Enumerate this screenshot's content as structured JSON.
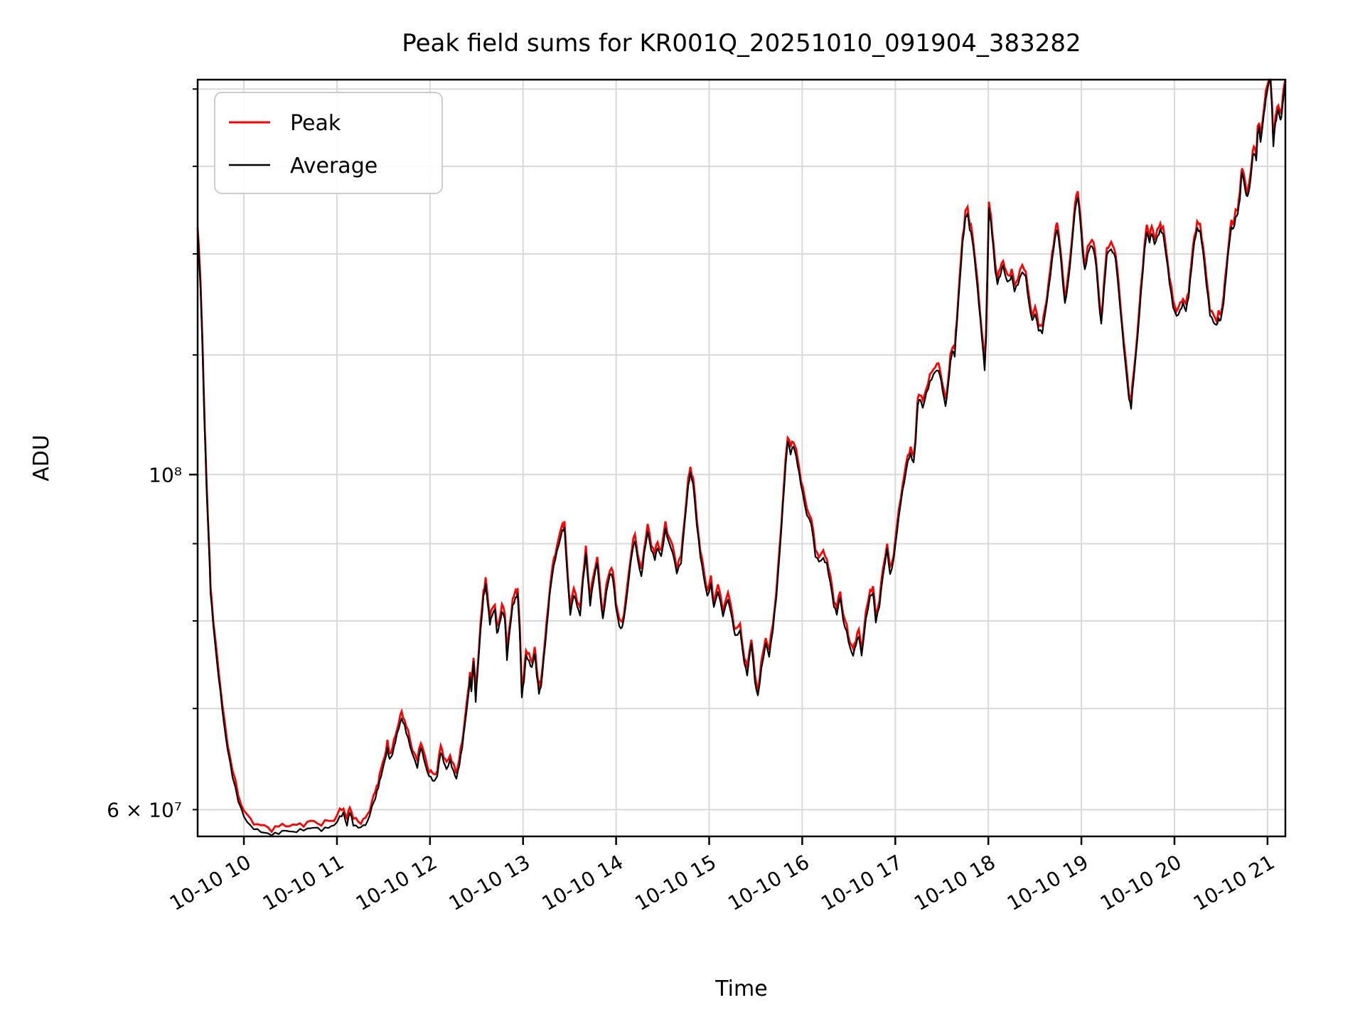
{
  "figure": {
    "background": "#ffffff"
  },
  "chart_data": {
    "type": "line",
    "title": "Peak field sums for KR001Q_20251010_091904_383282",
    "xlabel": "Time",
    "ylabel": "ADU",
    "grid": true,
    "legend": {
      "position": "upper-left",
      "entries": [
        {
          "label": "Peak",
          "color": "#ff0000"
        },
        {
          "label": "Average",
          "color": "#000000"
        }
      ]
    },
    "x_axis": {
      "scale": "time",
      "start_hour": 9.503,
      "end_hour": 21.192,
      "tick_hours": [
        10,
        11,
        12,
        13,
        14,
        15,
        16,
        17,
        18,
        19,
        20,
        21
      ],
      "tick_labels": [
        "10-10 10",
        "10-10 11",
        "10-10 12",
        "10-10 13",
        "10-10 14",
        "10-10 15",
        "10-10 16",
        "10-10 17",
        "10-10 18",
        "10-10 19",
        "10-10 20",
        "10-10 21"
      ]
    },
    "y_axis": {
      "scale": "log",
      "min": 57600000,
      "max": 182600000,
      "major_ticks": [
        {
          "value": 100000000,
          "label": "10⁸"
        }
      ],
      "labeled_minor_tick": {
        "value": 60000000,
        "label": "6 × 10⁷"
      },
      "grid_values": [
        60000000,
        70000000,
        80000000,
        90000000,
        100000000,
        120000000,
        140000000,
        160000000,
        180000000
      ]
    },
    "series_note": "Peak (red) and Average (black) overlap almost exactly; Peak rides marginally above Average",
    "points_unit": "x = hours of 10-10, y = ADU x 1e7",
    "points": [
      [
        9.503,
        14.5
      ],
      [
        9.526,
        13.6
      ],
      [
        9.542,
        12.85
      ],
      [
        9.557,
        11.95
      ],
      [
        9.572,
        11.05
      ],
      [
        9.587,
        10.3
      ],
      [
        9.603,
        9.6
      ],
      [
        9.626,
        8.9
      ],
      [
        9.641,
        8.35
      ],
      [
        9.671,
        7.95
      ],
      [
        9.71,
        7.52
      ],
      [
        9.748,
        7.18
      ],
      [
        9.786,
        6.85
      ],
      [
        9.824,
        6.6
      ],
      [
        9.878,
        6.33
      ],
      [
        9.939,
        6.1
      ],
      [
        10.0,
        5.95
      ],
      [
        10.069,
        5.86
      ],
      [
        10.145,
        5.82
      ],
      [
        10.222,
        5.79
      ],
      [
        10.298,
        5.77
      ],
      [
        10.374,
        5.78
      ],
      [
        10.451,
        5.8
      ],
      [
        10.527,
        5.78
      ],
      [
        10.604,
        5.8
      ],
      [
        10.68,
        5.81
      ],
      [
        10.756,
        5.83
      ],
      [
        10.833,
        5.81
      ],
      [
        10.909,
        5.84
      ],
      [
        10.97,
        5.86
      ],
      [
        11.031,
        5.94
      ],
      [
        11.07,
        5.98
      ],
      [
        11.108,
        5.87
      ],
      [
        11.138,
        6.0
      ],
      [
        11.176,
        5.88
      ],
      [
        11.23,
        5.85
      ],
      [
        11.283,
        5.86
      ],
      [
        11.329,
        5.89
      ],
      [
        11.375,
        6.02
      ],
      [
        11.413,
        6.1
      ],
      [
        11.444,
        6.2
      ],
      [
        11.474,
        6.3
      ],
      [
        11.513,
        6.44
      ],
      [
        11.543,
        6.57
      ],
      [
        11.566,
        6.46
      ],
      [
        11.597,
        6.52
      ],
      [
        11.627,
        6.65
      ],
      [
        11.665,
        6.8
      ],
      [
        11.696,
        6.9
      ],
      [
        11.726,
        6.83
      ],
      [
        11.765,
        6.7
      ],
      [
        11.81,
        6.55
      ],
      [
        11.864,
        6.42
      ],
      [
        11.902,
        6.62
      ],
      [
        11.933,
        6.5
      ],
      [
        11.971,
        6.36
      ],
      [
        12.009,
        6.3
      ],
      [
        12.047,
        6.26
      ],
      [
        12.078,
        6.31
      ],
      [
        12.116,
        6.54
      ],
      [
        12.147,
        6.44
      ],
      [
        12.177,
        6.36
      ],
      [
        12.216,
        6.45
      ],
      [
        12.254,
        6.34
      ],
      [
        12.284,
        6.28
      ],
      [
        12.315,
        6.42
      ],
      [
        12.346,
        6.6
      ],
      [
        12.376,
        6.85
      ],
      [
        12.407,
        7.1
      ],
      [
        12.43,
        7.35
      ],
      [
        12.445,
        7.2
      ],
      [
        12.468,
        7.55
      ],
      [
        12.491,
        7.1
      ],
      [
        12.514,
        7.45
      ],
      [
        12.544,
        7.9
      ],
      [
        12.575,
        8.3
      ],
      [
        12.598,
        8.45
      ],
      [
        12.621,
        8.2
      ],
      [
        12.644,
        7.95
      ],
      [
        12.667,
        8.05
      ],
      [
        12.697,
        8.12
      ],
      [
        12.72,
        7.82
      ],
      [
        12.743,
        7.92
      ],
      [
        12.774,
        8.1
      ],
      [
        12.804,
        8.03
      ],
      [
        12.827,
        7.55
      ],
      [
        12.858,
        7.9
      ],
      [
        12.888,
        8.2
      ],
      [
        12.919,
        8.3
      ],
      [
        12.941,
        8.36
      ],
      [
        12.964,
        7.9
      ],
      [
        12.987,
        7.15
      ],
      [
        13.01,
        7.32
      ],
      [
        13.033,
        7.6
      ],
      [
        13.064,
        7.52
      ],
      [
        13.094,
        7.44
      ],
      [
        13.125,
        7.6
      ],
      [
        13.148,
        7.35
      ],
      [
        13.171,
        7.15
      ],
      [
        13.194,
        7.22
      ],
      [
        13.224,
        7.55
      ],
      [
        13.255,
        7.9
      ],
      [
        13.285,
        8.3
      ],
      [
        13.316,
        8.6
      ],
      [
        13.346,
        8.8
      ],
      [
        13.384,
        9.0
      ],
      [
        13.422,
        9.2
      ],
      [
        13.445,
        9.23
      ],
      [
        13.476,
        8.6
      ],
      [
        13.507,
        8.1
      ],
      [
        13.545,
        8.35
      ],
      [
        13.583,
        8.2
      ],
      [
        13.613,
        8.07
      ],
      [
        13.644,
        8.5
      ],
      [
        13.675,
        8.85
      ],
      [
        13.698,
        8.5
      ],
      [
        13.721,
        8.18
      ],
      [
        13.759,
        8.5
      ],
      [
        13.797,
        8.72
      ],
      [
        13.828,
        8.3
      ],
      [
        13.858,
        8.0
      ],
      [
        13.896,
        8.35
      ],
      [
        13.935,
        8.6
      ],
      [
        13.965,
        8.55
      ],
      [
        13.996,
        8.2
      ],
      [
        14.034,
        7.95
      ],
      [
        14.065,
        7.93
      ],
      [
        14.103,
        8.2
      ],
      [
        14.141,
        8.6
      ],
      [
        14.171,
        8.9
      ],
      [
        14.202,
        9.06
      ],
      [
        14.232,
        8.8
      ],
      [
        14.271,
        8.55
      ],
      [
        14.301,
        8.85
      ],
      [
        14.339,
        9.15
      ],
      [
        14.377,
        8.9
      ],
      [
        14.416,
        8.77
      ],
      [
        14.446,
        8.92
      ],
      [
        14.484,
        8.8
      ],
      [
        14.53,
        9.18
      ],
      [
        14.568,
        9.0
      ],
      [
        14.607,
        8.88
      ],
      [
        14.652,
        8.62
      ],
      [
        14.698,
        8.76
      ],
      [
        14.736,
        9.3
      ],
      [
        14.775,
        9.85
      ],
      [
        14.798,
        10.05
      ],
      [
        14.828,
        9.88
      ],
      [
        14.866,
        9.3
      ],
      [
        14.905,
        8.85
      ],
      [
        14.943,
        8.55
      ],
      [
        14.981,
        8.3
      ],
      [
        15.019,
        8.45
      ],
      [
        15.05,
        8.15
      ],
      [
        15.095,
        8.35
      ],
      [
        15.149,
        8.05
      ],
      [
        15.202,
        8.25
      ],
      [
        15.248,
        8.0
      ],
      [
        15.279,
        7.8
      ],
      [
        15.332,
        7.87
      ],
      [
        15.378,
        7.5
      ],
      [
        15.409,
        7.38
      ],
      [
        15.454,
        7.75
      ],
      [
        15.493,
        7.3
      ],
      [
        15.523,
        7.15
      ],
      [
        15.561,
        7.45
      ],
      [
        15.607,
        7.75
      ],
      [
        15.645,
        7.6
      ],
      [
        15.684,
        7.9
      ],
      [
        15.722,
        8.3
      ],
      [
        15.76,
        8.9
      ],
      [
        15.791,
        9.5
      ],
      [
        15.821,
        10.1
      ],
      [
        15.844,
        10.5
      ],
      [
        15.875,
        10.3
      ],
      [
        15.905,
        10.42
      ],
      [
        15.936,
        10.25
      ],
      [
        15.966,
        10.0
      ],
      [
        16.005,
        9.7
      ],
      [
        16.05,
        9.4
      ],
      [
        16.096,
        9.3
      ],
      [
        16.142,
        8.85
      ],
      [
        16.18,
        8.78
      ],
      [
        16.226,
        8.82
      ],
      [
        16.264,
        8.75
      ],
      [
        16.302,
        8.5
      ],
      [
        16.341,
        8.2
      ],
      [
        16.371,
        8.1
      ],
      [
        16.409,
        8.3
      ],
      [
        16.44,
        8.0
      ],
      [
        16.478,
        7.85
      ],
      [
        16.516,
        7.65
      ],
      [
        16.547,
        7.57
      ],
      [
        16.577,
        7.7
      ],
      [
        16.608,
        7.8
      ],
      [
        16.638,
        7.57
      ],
      [
        16.684,
        8.0
      ],
      [
        16.73,
        8.3
      ],
      [
        16.761,
        8.35
      ],
      [
        16.791,
        8.0
      ],
      [
        16.829,
        8.2
      ],
      [
        16.868,
        8.6
      ],
      [
        16.913,
        8.95
      ],
      [
        16.944,
        8.6
      ],
      [
        16.982,
        8.8
      ],
      [
        17.02,
        9.2
      ],
      [
        17.059,
        9.6
      ],
      [
        17.097,
        9.9
      ],
      [
        17.135,
        10.2
      ],
      [
        17.165,
        10.3
      ],
      [
        17.196,
        10.15
      ],
      [
        17.219,
        10.5
      ],
      [
        17.242,
        11.1
      ],
      [
        17.265,
        11.2
      ],
      [
        17.295,
        11.05
      ],
      [
        17.334,
        11.3
      ],
      [
        17.372,
        11.5
      ],
      [
        17.41,
        11.65
      ],
      [
        17.448,
        11.75
      ],
      [
        17.479,
        11.68
      ],
      [
        17.509,
        11.4
      ],
      [
        17.54,
        11.12
      ],
      [
        17.57,
        11.5
      ],
      [
        17.593,
        11.9
      ],
      [
        17.616,
        12.1
      ],
      [
        17.639,
        12.0
      ],
      [
        17.662,
        12.6
      ],
      [
        17.693,
        13.4
      ],
      [
        17.723,
        14.2
      ],
      [
        17.754,
        14.75
      ],
      [
        17.777,
        14.85
      ],
      [
        17.8,
        14.5
      ],
      [
        17.823,
        14.35
      ],
      [
        17.853,
        13.85
      ],
      [
        17.884,
        13.25
      ],
      [
        17.914,
        12.65
      ],
      [
        17.945,
        12.05
      ],
      [
        17.96,
        11.75
      ],
      [
        17.975,
        12.3
      ],
      [
        17.991,
        13.6
      ],
      [
        18.006,
        15.05
      ],
      [
        18.029,
        14.7
      ],
      [
        18.052,
        14.2
      ],
      [
        18.075,
        13.65
      ],
      [
        18.098,
        13.4
      ],
      [
        18.128,
        13.55
      ],
      [
        18.159,
        13.75
      ],
      [
        18.19,
        13.45
      ],
      [
        18.22,
        13.38
      ],
      [
        18.251,
        13.5
      ],
      [
        18.281,
        13.2
      ],
      [
        18.319,
        13.35
      ],
      [
        18.365,
        13.6
      ],
      [
        18.403,
        13.5
      ],
      [
        18.434,
        13.0
      ],
      [
        18.472,
        12.65
      ],
      [
        18.503,
        12.8
      ],
      [
        18.541,
        12.5
      ],
      [
        18.579,
        12.45
      ],
      [
        18.609,
        12.8
      ],
      [
        18.648,
        13.3
      ],
      [
        18.686,
        13.9
      ],
      [
        18.716,
        14.35
      ],
      [
        18.739,
        14.55
      ],
      [
        18.77,
        14.1
      ],
      [
        18.8,
        13.4
      ],
      [
        18.823,
        12.95
      ],
      [
        18.854,
        13.3
      ],
      [
        18.892,
        14.0
      ],
      [
        18.93,
        14.9
      ],
      [
        18.961,
        15.25
      ],
      [
        18.984,
        14.8
      ],
      [
        19.014,
        14.0
      ],
      [
        19.037,
        13.65
      ],
      [
        19.068,
        14.0
      ],
      [
        19.098,
        14.2
      ],
      [
        19.129,
        14.15
      ],
      [
        19.159,
        13.8
      ],
      [
        19.19,
        13.0
      ],
      [
        19.213,
        12.6
      ],
      [
        19.244,
        13.3
      ],
      [
        19.274,
        14.0
      ],
      [
        19.305,
        14.1
      ],
      [
        19.335,
        14.05
      ],
      [
        19.366,
        13.9
      ],
      [
        19.396,
        13.3
      ],
      [
        19.435,
        12.5
      ],
      [
        19.473,
        11.8
      ],
      [
        19.511,
        11.2
      ],
      [
        19.534,
        11.05
      ],
      [
        19.564,
        11.6
      ],
      [
        19.603,
        12.3
      ],
      [
        19.641,
        13.2
      ],
      [
        19.679,
        14.1
      ],
      [
        19.702,
        14.5
      ],
      [
        19.733,
        14.3
      ],
      [
        19.756,
        14.5
      ],
      [
        19.786,
        14.25
      ],
      [
        19.817,
        14.4
      ],
      [
        19.848,
        14.55
      ],
      [
        19.878,
        14.45
      ],
      [
        19.909,
        14.0
      ],
      [
        19.947,
        13.4
      ],
      [
        19.985,
        12.9
      ],
      [
        20.023,
        12.7
      ],
      [
        20.062,
        12.8
      ],
      [
        20.092,
        12.95
      ],
      [
        20.123,
        12.8
      ],
      [
        20.153,
        13.1
      ],
      [
        20.184,
        13.7
      ],
      [
        20.214,
        14.25
      ],
      [
        20.245,
        14.55
      ],
      [
        20.276,
        14.5
      ],
      [
        20.306,
        14.1
      ],
      [
        20.344,
        13.4
      ],
      [
        20.382,
        12.8
      ],
      [
        20.421,
        12.65
      ],
      [
        20.451,
        12.58
      ],
      [
        20.474,
        12.7
      ],
      [
        20.497,
        12.66
      ],
      [
        20.528,
        13.0
      ],
      [
        20.558,
        13.6
      ],
      [
        20.589,
        14.2
      ],
      [
        20.612,
        14.55
      ],
      [
        20.635,
        14.5
      ],
      [
        20.657,
        14.75
      ],
      [
        20.68,
        14.85
      ],
      [
        20.703,
        15.2
      ],
      [
        20.726,
        15.85
      ],
      [
        20.749,
        15.6
      ],
      [
        20.772,
        15.3
      ],
      [
        20.795,
        15.35
      ],
      [
        20.818,
        15.7
      ],
      [
        20.841,
        16.3
      ],
      [
        20.864,
        16.35
      ],
      [
        20.879,
        16.2
      ],
      [
        20.895,
        16.85
      ],
      [
        20.91,
        17.0
      ],
      [
        20.925,
        16.6
      ],
      [
        20.948,
        17.05
      ],
      [
        20.971,
        17.5
      ],
      [
        20.994,
        17.9
      ],
      [
        21.017,
        18.15
      ],
      [
        21.032,
        18.25
      ],
      [
        21.048,
        17.4
      ],
      [
        21.063,
        16.45
      ],
      [
        21.078,
        16.95
      ],
      [
        21.093,
        17.15
      ],
      [
        21.116,
        17.45
      ],
      [
        21.131,
        17.25
      ],
      [
        21.146,
        17.2
      ],
      [
        21.162,
        17.6
      ],
      [
        21.177,
        17.95
      ],
      [
        21.192,
        18.25
      ]
    ]
  }
}
